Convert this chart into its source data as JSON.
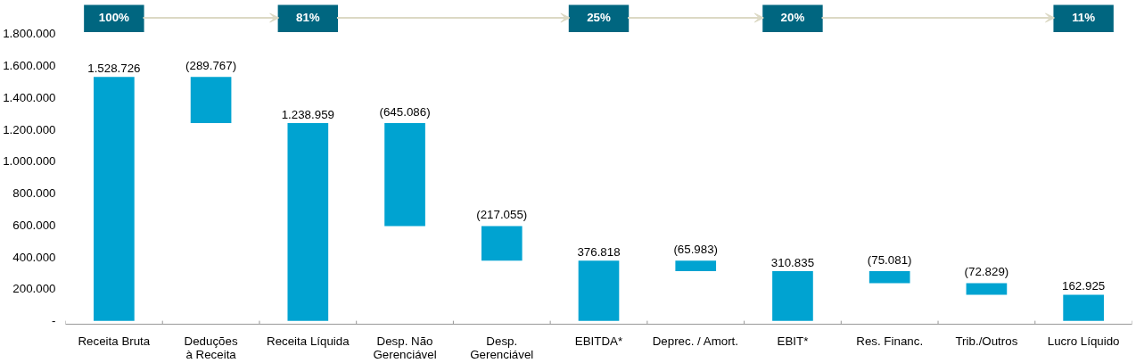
{
  "chart_data": {
    "type": "bar",
    "color": "#00a3d1",
    "categories": [
      "Receita Bruta",
      "Deduções à Receita",
      "Receita Líquida",
      "Desp. Não Gerenciável",
      "Desp. Gerenciável",
      "EBITDA*",
      "Deprec. / Amort.",
      "EBIT*",
      "Res. Financ.",
      "Trib./Outros",
      "Lucro Líquido"
    ],
    "values": [
      1528726,
      -289767,
      1238959,
      -645086,
      -217055,
      376818,
      -65983,
      310835,
      -75081,
      -72829,
      162925
    ],
    "base": [
      0,
      1528726,
      0,
      1238959,
      593873,
      0,
      376818,
      0,
      310835,
      235754,
      0
    ],
    "value_labels": [
      "1.528.726",
      "(289.767)",
      "1.238.959",
      "(645.086)",
      "(217.055)",
      "376.818",
      "(65.983)",
      "310.835",
      "(75.081)",
      "(72.829)",
      "162.925"
    ],
    "ylim": [
      0,
      1800000
    ],
    "yticks": [
      {
        "value": 0,
        "label": "-"
      },
      {
        "value": 200000,
        "label": "200.000"
      },
      {
        "value": 400000,
        "label": "400.000"
      },
      {
        "value": 600000,
        "label": "600.000"
      },
      {
        "value": 800000,
        "label": "800.000"
      },
      {
        "value": 1000000,
        "label": "1.000.000"
      },
      {
        "value": 1200000,
        "label": "1.200.000"
      },
      {
        "value": 1400000,
        "label": "1.400.000"
      },
      {
        "value": 1600000,
        "label": "1.600.000"
      },
      {
        "value": 1800000,
        "label": "1.800.000"
      }
    ],
    "grid": false,
    "annotations": [
      "100%",
      "81%",
      "25%",
      "20%",
      "11%"
    ]
  }
}
